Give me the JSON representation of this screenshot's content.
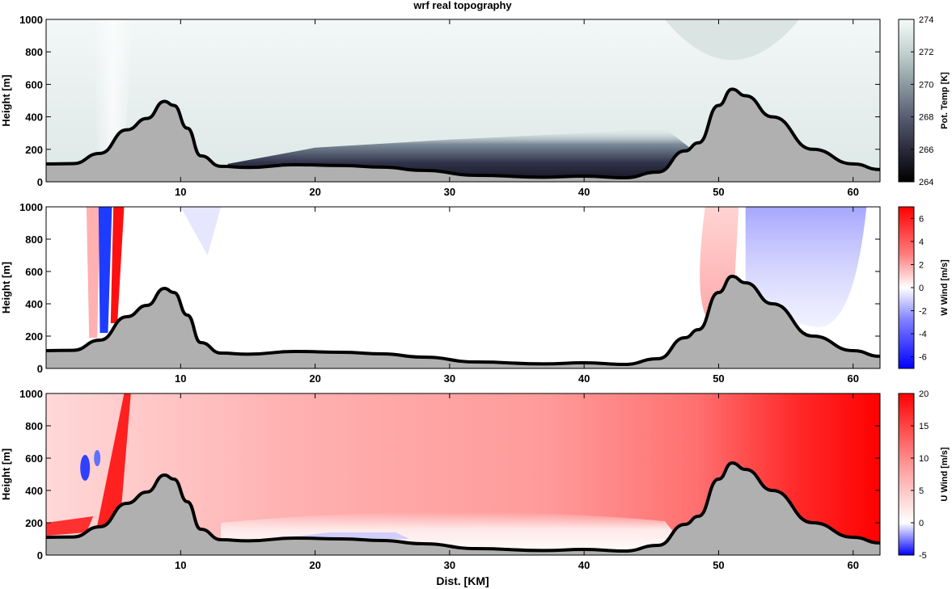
{
  "figure": {
    "title": "wrf real topography",
    "xlabel": "Dist. [KM]"
  },
  "chart_data": [
    {
      "type": "heatmap",
      "ylabel": "Height [m]",
      "xlim": [
        0,
        62
      ],
      "ylim": [
        0,
        1000
      ],
      "xticks": [
        10,
        20,
        30,
        40,
        50,
        60
      ],
      "yticks": [
        0,
        200,
        400,
        600,
        800,
        1000
      ],
      "colorbar": {
        "label": "Pot. Temp [K]",
        "range": [
          264,
          274
        ],
        "ticks": [
          264,
          266,
          268,
          270,
          272,
          274
        ],
        "colormap": "bone",
        "stops": [
          "#000000",
          "#2b2b3c",
          "#585d73",
          "#8a9aa0",
          "#c2d3d0",
          "#f5faf9"
        ]
      },
      "field_description": "cold pool (264-268 K) filling the valley floor between 14 and 47 km below ~200 m; 272-274 K above"
    },
    {
      "type": "heatmap",
      "ylabel": "Height [m]",
      "xlim": [
        0,
        62
      ],
      "ylim": [
        0,
        1000
      ],
      "xticks": [
        10,
        20,
        30,
        40,
        50,
        60
      ],
      "yticks": [
        0,
        200,
        400,
        600,
        800,
        1000
      ],
      "colorbar": {
        "label": "W Wind [m/s]",
        "range": [
          -7,
          7
        ],
        "ticks": [
          -6,
          -4,
          -2,
          0,
          2,
          4,
          6
        ],
        "colormap": "blue-white-red",
        "stops": [
          "#0000ff",
          "#8080ff",
          "#ffffff",
          "#ff8080",
          "#ff0000"
        ]
      },
      "field_description": "strong updraft/downdraft pair near 4-6 km; weak ascent 48-51 km and broad descent 52-60 km"
    },
    {
      "type": "heatmap",
      "ylabel": "Height [m]",
      "xlim": [
        0,
        62
      ],
      "ylim": [
        0,
        1000
      ],
      "xticks": [
        10,
        20,
        30,
        40,
        50,
        60
      ],
      "yticks": [
        0,
        200,
        400,
        600,
        800,
        1000
      ],
      "colorbar": {
        "label": "U Wind [m/s]",
        "range": [
          -5,
          20
        ],
        "ticks": [
          -5,
          0,
          5,
          10,
          15,
          20
        ],
        "colormap": "blue-white-red",
        "stops": [
          "#0000ff",
          "#8080ff",
          "#ffffff",
          "#ff8080",
          "#ff0000"
        ]
      },
      "field_description": "westerly flow 5-20 m/s increasing eastward; calm layer above valley floor; small negative patch near 3 km, 550 m"
    }
  ],
  "terrain": {
    "x": [
      0,
      2,
      4,
      6,
      7.5,
      8.8,
      9.5,
      10.5,
      11.5,
      13,
      15,
      18.5,
      22,
      25,
      28,
      32,
      37,
      40,
      43,
      45.5,
      47.5,
      48.5,
      50,
      51,
      52,
      54,
      57,
      60,
      62
    ],
    "height": [
      110,
      112,
      175,
      320,
      390,
      495,
      470,
      330,
      160,
      95,
      88,
      105,
      100,
      90,
      70,
      40,
      28,
      35,
      25,
      60,
      190,
      240,
      470,
      570,
      530,
      400,
      200,
      110,
      75
    ]
  }
}
